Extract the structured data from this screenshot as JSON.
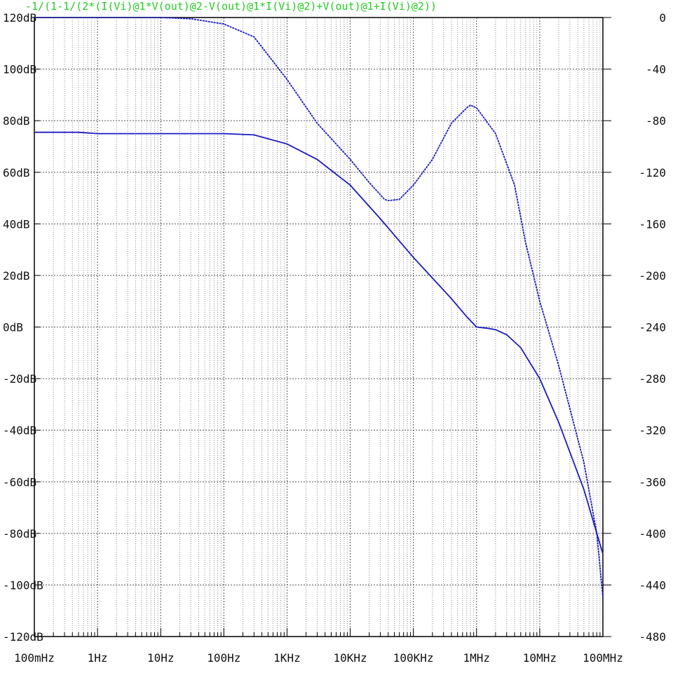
{
  "chart_data": {
    "type": "line",
    "title": "-1/(1-1/(2*(I(Vi)@1*V(out)@2-V(out)@1*I(Vi)@2)+V(out)@1+I(Vi)@2))",
    "x_scale": "log",
    "xlim": [
      0.1,
      100000000
    ],
    "ylim_left": [
      -120,
      120
    ],
    "ylim_right": [
      -480,
      0
    ],
    "grid": true,
    "x_ticks": [
      {
        "value": 0.1,
        "label": "100mHz"
      },
      {
        "value": 1,
        "label": "1Hz"
      },
      {
        "value": 10,
        "label": "10Hz"
      },
      {
        "value": 100,
        "label": "100Hz"
      },
      {
        "value": 1000,
        "label": "1KHz"
      },
      {
        "value": 10000,
        "label": "10KHz"
      },
      {
        "value": 100000,
        "label": "100KHz"
      },
      {
        "value": 1000000,
        "label": "1MHz"
      },
      {
        "value": 10000000,
        "label": "10MHz"
      },
      {
        "value": 100000000,
        "label": "100MHz"
      }
    ],
    "y_ticks_left": [
      {
        "value": 120,
        "label": "120dB"
      },
      {
        "value": 100,
        "label": "100dB"
      },
      {
        "value": 80,
        "label": "80dB"
      },
      {
        "value": 60,
        "label": "60dB"
      },
      {
        "value": 40,
        "label": "40dB"
      },
      {
        "value": 20,
        "label": "20dB"
      },
      {
        "value": 0,
        "label": "0dB"
      },
      {
        "value": -20,
        "label": "-20dB"
      },
      {
        "value": -40,
        "label": "-40dB"
      },
      {
        "value": -60,
        "label": "-60dB"
      },
      {
        "value": -80,
        "label": "-80dB"
      },
      {
        "value": -100,
        "label": "-100dB"
      },
      {
        "value": -120,
        "label": "-120dB"
      }
    ],
    "y_ticks_right": [
      {
        "value": 0,
        "label": "0"
      },
      {
        "value": -40,
        "label": "-40"
      },
      {
        "value": -80,
        "label": "-80"
      },
      {
        "value": -120,
        "label": "-120"
      },
      {
        "value": -160,
        "label": "-160"
      },
      {
        "value": -200,
        "label": "-200"
      },
      {
        "value": -240,
        "label": "-240"
      },
      {
        "value": -280,
        "label": "-280"
      },
      {
        "value": -320,
        "label": "-320"
      },
      {
        "value": -360,
        "label": "-360"
      },
      {
        "value": -400,
        "label": "-400"
      },
      {
        "value": -440,
        "label": "-440"
      },
      {
        "value": -480,
        "label": "-480"
      }
    ],
    "series": [
      {
        "axis": "left",
        "style": "solid",
        "color": "#1c1cc0",
        "points": [
          [
            0.1,
            75.5
          ],
          [
            0.5,
            75.5
          ],
          [
            1,
            75
          ],
          [
            10,
            75
          ],
          [
            100,
            75
          ],
          [
            300,
            74.5
          ],
          [
            1000,
            71
          ],
          [
            3000,
            65
          ],
          [
            10000,
            55
          ],
          [
            30000,
            42
          ],
          [
            100000,
            27
          ],
          [
            200000,
            19
          ],
          [
            400000,
            11
          ],
          [
            700000,
            4
          ],
          [
            1000000,
            0
          ],
          [
            1500000,
            -0.5
          ],
          [
            2000000,
            -1
          ],
          [
            3000000,
            -3
          ],
          [
            5000000,
            -8
          ],
          [
            10000000,
            -20
          ],
          [
            20000000,
            -37
          ],
          [
            50000000,
            -63
          ],
          [
            100000000,
            -88
          ]
        ]
      },
      {
        "axis": "right",
        "style": "dashed",
        "color": "#1c1cc0",
        "points": [
          [
            0.1,
            0
          ],
          [
            10,
            0
          ],
          [
            30,
            -1
          ],
          [
            100,
            -5
          ],
          [
            300,
            -15
          ],
          [
            1000,
            -48
          ],
          [
            3000,
            -82
          ],
          [
            10000,
            -110
          ],
          [
            20000,
            -128
          ],
          [
            35000,
            -141
          ],
          [
            40000,
            -142
          ],
          [
            60000,
            -141
          ],
          [
            100000,
            -130
          ],
          [
            200000,
            -110
          ],
          [
            400000,
            -82
          ],
          [
            700000,
            -70
          ],
          [
            800000,
            -68
          ],
          [
            1000000,
            -70
          ],
          [
            2000000,
            -90
          ],
          [
            4000000,
            -130
          ],
          [
            6000000,
            -175
          ],
          [
            10000000,
            -220
          ],
          [
            20000000,
            -270
          ],
          [
            50000000,
            -345
          ],
          [
            80000000,
            -400
          ],
          [
            100000000,
            -450
          ]
        ]
      }
    ]
  }
}
